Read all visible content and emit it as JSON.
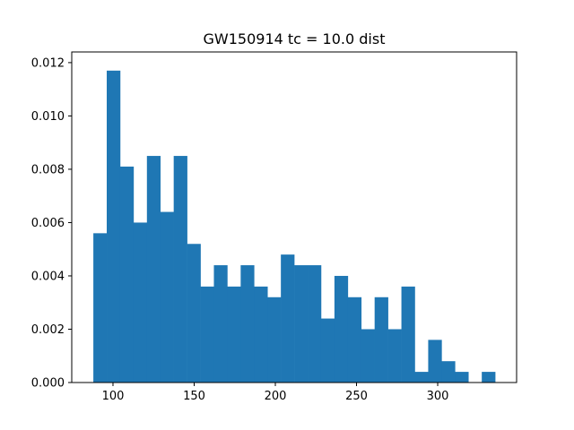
{
  "chart_data": {
    "type": "bar",
    "title": "GW150914 tc = 10.0 dist",
    "xlabel": "",
    "ylabel": "",
    "xlim": [
      74.6,
      348.6
    ],
    "ylim": [
      0,
      0.0124
    ],
    "bin_start": 87.9,
    "bin_width": 8.25,
    "values": [
      0.0056,
      0.0117,
      0.0081,
      0.006,
      0.0085,
      0.0064,
      0.0085,
      0.0052,
      0.0036,
      0.0044,
      0.0036,
      0.0044,
      0.0036,
      0.0032,
      0.0048,
      0.0044,
      0.0044,
      0.0024,
      0.004,
      0.0032,
      0.002,
      0.0032,
      0.002,
      0.0036,
      0.0004,
      0.0016,
      0.0008,
      0.0004,
      0.0,
      0.0004
    ],
    "xticks": [
      100,
      150,
      200,
      250,
      300
    ],
    "yticks": [
      0.0,
      0.002,
      0.004,
      0.006,
      0.008,
      0.01,
      0.012
    ],
    "ytick_labels": [
      "0.000",
      "0.002",
      "0.004",
      "0.006",
      "0.008",
      "0.010",
      "0.012"
    ],
    "color": "#1f77b4",
    "grid": false,
    "legend": "none"
  }
}
